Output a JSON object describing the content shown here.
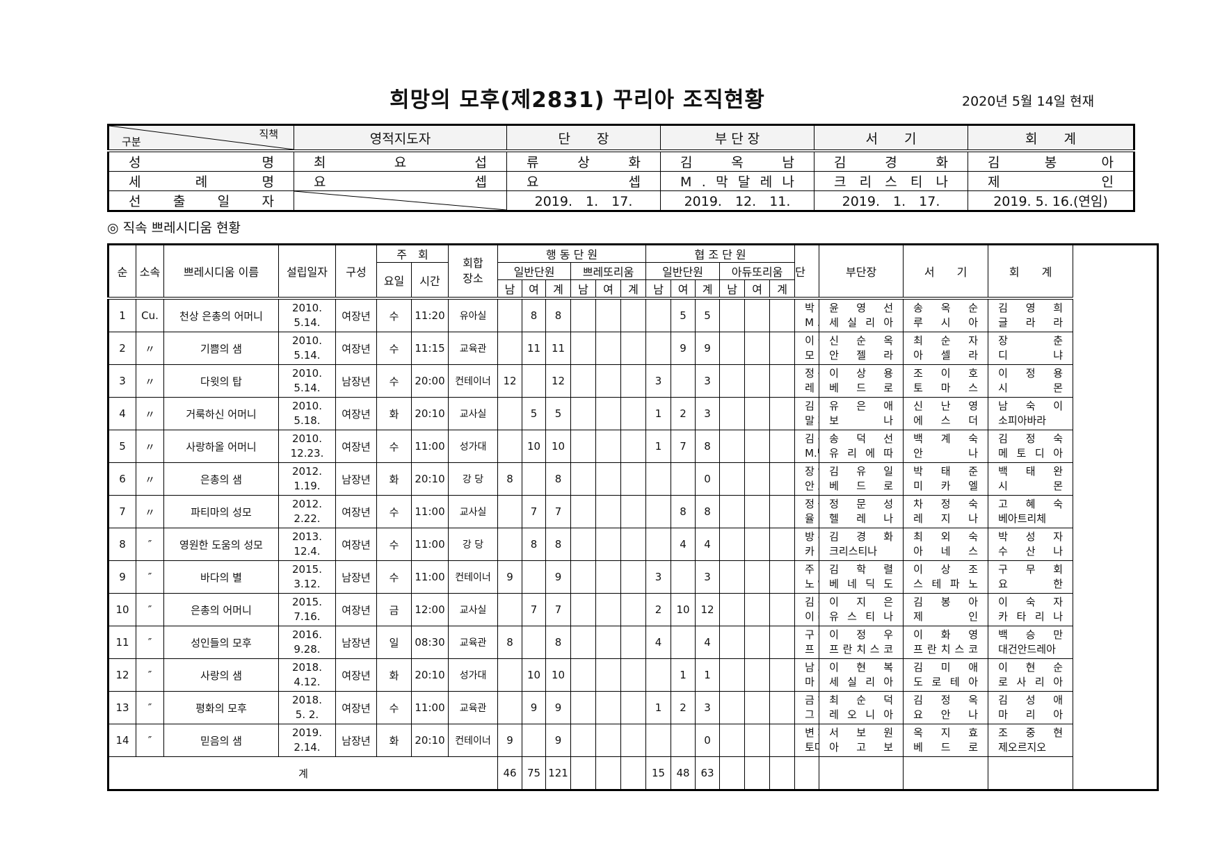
{
  "title": "희망의 모후(제2831) 꾸리아 조직현황",
  "as_of": "2020년 5월 14일 현재",
  "officers_table": {
    "corner_top": "직책",
    "corner_bottom": "구분",
    "headers": [
      "영적지도자",
      "단　　장",
      "부 단 장",
      "서　　기",
      "회　　계"
    ],
    "row_labels": [
      "성 명",
      "세 례 명",
      "선 출 일 자"
    ],
    "names": [
      "최 요 섭",
      "류 상 화",
      "김 옥 남",
      "김 경 화",
      "김 봉 아"
    ],
    "baptismal": [
      "요 셉",
      "요 셉",
      "M . 막 달 레 나",
      "크 리 스 티 나",
      "제 인"
    ],
    "elected": [
      "",
      "2019.　1.　17.",
      "2019.　12.　11.",
      "2019.　1.　17.",
      "2019. 5. 16.(연임)"
    ]
  },
  "section_title": "◎ 직속 쁘레시디움 현황",
  "main_table": {
    "headers": {
      "no": "순",
      "affil": "소속",
      "name": "쁘레시디움 이름",
      "founded": "설립일자",
      "composition": "구성",
      "meeting": "주　회",
      "day": "요일",
      "time": "시간",
      "place": "회합\n장소",
      "active": "행 동 단 원",
      "auxiliary": "협 조 단 원",
      "general": "일반단원",
      "praetorian": "쁘레또리움",
      "adjutorian": "아듀또리움",
      "male": "남",
      "female": "여",
      "sum": "계",
      "president": "단　　장",
      "vice": "부단장",
      "secretary": "서　　기",
      "treasurer": "회　　계"
    },
    "rows": [
      {
        "no": "1",
        "affil": "Cu.",
        "name": "천상 은총의 어머니",
        "founded": [
          "2010.",
          "5.14."
        ],
        "comp": "여장년",
        "day": "수",
        "time": "11:20",
        "place": "유아실",
        "active": [
          "",
          "8",
          "8"
        ],
        "pret": [
          "",
          "",
          ""
        ],
        "aux": [
          "",
          "5",
          "5"
        ],
        "adj": [
          "",
          "",
          ""
        ],
        "off": [
          [
            "박 말 임",
            "M . 살 로 메"
          ],
          [
            "윤 영 선",
            "세 실 리 아"
          ],
          [
            "송 옥 순",
            "루 시 아"
          ],
          [
            "김 영 희",
            "글 라 라"
          ]
        ]
      },
      {
        "no": "2",
        "affil": "〃",
        "name": "기쁨의 샘",
        "founded": [
          "2010.",
          "5.14."
        ],
        "comp": "여장년",
        "day": "수",
        "time": "11:15",
        "place": "교육관",
        "active": [
          "",
          "11",
          "11"
        ],
        "pret": [
          "",
          "",
          ""
        ],
        "aux": [
          "",
          "9",
          "9"
        ],
        "adj": [
          "",
          "",
          ""
        ],
        "off": [
          [
            "이 필 금",
            "모 니 카"
          ],
          [
            "신 순 옥",
            "안 젤 라"
          ],
          [
            "최 순 자",
            "아 셀 라"
          ],
          [
            "장 춘",
            "디 냐"
          ]
        ]
      },
      {
        "no": "3",
        "affil": "〃",
        "name": "다윗의 탑",
        "founded": [
          "2010.",
          "5.14."
        ],
        "comp": "남장년",
        "day": "수",
        "time": "20:00",
        "place": "컨테이너",
        "active": [
          "12",
          "",
          "12"
        ],
        "pret": [
          "",
          "",
          ""
        ],
        "aux": [
          "3",
          "",
          "3"
        ],
        "adj": [
          "",
          "",
          ""
        ],
        "off": [
          [
            "정 종 구",
            "레 미 지 오"
          ],
          [
            "이 상 용",
            "베 드 로"
          ],
          [
            "조 이 호",
            "토 마 스"
          ],
          [
            "이 정 용",
            "시 몬"
          ]
        ]
      },
      {
        "no": "4",
        "affil": "〃",
        "name": "거룩하신 어머니",
        "founded": [
          "2010.",
          "5.18."
        ],
        "comp": "여장년",
        "day": "화",
        "time": "20:10",
        "place": "교사실",
        "active": [
          "",
          "5",
          "5"
        ],
        "pret": [
          "",
          "",
          ""
        ],
        "aux": [
          "1",
          "2",
          "3"
        ],
        "adj": [
          "",
          "",
          ""
        ],
        "off": [
          [
            "김 말 필",
            "말 지 나"
          ],
          [
            "유 은 애",
            "보 나"
          ],
          [
            "신 난 영",
            "에 스 더"
          ],
          [
            "남 숙 이",
            "소피아바라"
          ]
        ]
      },
      {
        "no": "5",
        "affil": "〃",
        "name": "사랑하올 어머니",
        "founded": [
          "2010.",
          "12.23."
        ],
        "comp": "여장년",
        "day": "수",
        "time": "11:00",
        "place": "성가대",
        "active": [
          "",
          "10",
          "10"
        ],
        "pret": [
          "",
          "",
          ""
        ],
        "aux": [
          "1",
          "7",
          "8"
        ],
        "adj": [
          "",
          "",
          ""
        ],
        "off": [
          [
            "김 옥 남",
            "M.막달레나"
          ],
          [
            "송 덕 선",
            "유 리 에 따"
          ],
          [
            "백 계 숙",
            "안 나"
          ],
          [
            "김 정 숙",
            "메 토 디 아"
          ]
        ]
      },
      {
        "no": "6",
        "affil": "〃",
        "name": "은총의 샘",
        "founded": [
          "2012.",
          "1.19."
        ],
        "comp": "남장년",
        "day": "화",
        "time": "20:10",
        "place": "강 당",
        "active": [
          "8",
          "",
          "8"
        ],
        "pret": [
          "",
          "",
          ""
        ],
        "aux": [
          "",
          "",
          "0"
        ],
        "adj": [
          "",
          "",
          ""
        ],
        "off": [
          [
            "장 영 진",
            "안 토 니 오"
          ],
          [
            "김 유 일",
            "베 드 로"
          ],
          [
            "박 태 준",
            "미 카 엘"
          ],
          [
            "백 태 완",
            "시 몬"
          ]
        ]
      },
      {
        "no": "7",
        "affil": "〃",
        "name": "파티마의 성모",
        "founded": [
          "2012.",
          "2.22."
        ],
        "comp": "여장년",
        "day": "수",
        "time": "11:00",
        "place": "교사실",
        "active": [
          "",
          "7",
          "7"
        ],
        "pret": [
          "",
          "",
          ""
        ],
        "aux": [
          "",
          "8",
          "8"
        ],
        "adj": [
          "",
          "",
          ""
        ],
        "off": [
          [
            "정 숙 자",
            "율 리 안 나"
          ],
          [
            "정 문 성",
            "헬 레 나"
          ],
          [
            "차 정 숙",
            "레 지 나"
          ],
          [
            "고 혜 숙",
            "베아트리체"
          ]
        ]
      },
      {
        "no": "8",
        "affil": "″",
        "name": "영원한 도움의 성모",
        "founded": [
          "2013.",
          "12.4."
        ],
        "comp": "여장년",
        "day": "수",
        "time": "11:00",
        "place": "강 당",
        "active": [
          "",
          "8",
          "8"
        ],
        "pret": [
          "",
          "",
          ""
        ],
        "aux": [
          "",
          "4",
          "4"
        ],
        "adj": [
          "",
          "",
          ""
        ],
        "off": [
          [
            "방 수 자",
            "카 타 리 나"
          ],
          [
            "김 경 화",
            "크리스티나"
          ],
          [
            "최 외 숙",
            "아 네 스"
          ],
          [
            "박 성 자",
            "수 산 나"
          ]
        ]
      },
      {
        "no": "9",
        "affil": "″",
        "name": "바다의  별",
        "founded": [
          "2015.",
          "3.12."
        ],
        "comp": "남장년",
        "day": "수",
        "time": "11:00",
        "place": "컨테이너",
        "active": [
          "9",
          "",
          "9"
        ],
        "pret": [
          "",
          "",
          ""
        ],
        "aux": [
          "3",
          "",
          "3"
        ],
        "adj": [
          "",
          "",
          ""
        ],
        "off": [
          [
            "주 병 목",
            "노 엘"
          ],
          [
            "김 학 렬",
            "베 네 딕 도"
          ],
          [
            "이 상 조",
            "스 테 파 노"
          ],
          [
            "구 무 회",
            "요 한"
          ]
        ]
      },
      {
        "no": "10",
        "affil": "″",
        "name": "은총의 어머니",
        "founded": [
          "2015.",
          "7.16."
        ],
        "comp": "여장년",
        "day": "금",
        "time": "12:00",
        "place": "교사실",
        "active": [
          "",
          "7",
          "7"
        ],
        "pret": [
          "",
          "",
          ""
        ],
        "aux": [
          "2",
          "10",
          "12"
        ],
        "adj": [
          "",
          "",
          ""
        ],
        "off": [
          [
            "김 정 영",
            "이 레 네"
          ],
          [
            "이 지 은",
            "유 스 티 나"
          ],
          [
            "김 봉 아",
            "제 인"
          ],
          [
            "이 숙 자",
            "카 타 리 나"
          ]
        ]
      },
      {
        "no": "11",
        "affil": "″",
        "name": "성인들의 모후",
        "founded": [
          "2016.",
          "9.28."
        ],
        "comp": "남장년",
        "day": "일",
        "time": "08:30",
        "place": "교육관",
        "active": [
          "8",
          "",
          "8"
        ],
        "pret": [
          "",
          "",
          ""
        ],
        "aux": [
          "4",
          "",
          "4"
        ],
        "adj": [
          "",
          "",
          ""
        ],
        "off": [
          [
            "구 길 천",
            "프 란 치 스 코"
          ],
          [
            "이 정 우",
            "프 란 치 스 코"
          ],
          [
            "이 화 영",
            "프 란 치 스 코"
          ],
          [
            "백 승 만",
            "대건안드레아"
          ]
        ]
      },
      {
        "no": "12",
        "affil": "″",
        "name": "사랑의 샘",
        "founded": [
          "2018.",
          "4.12."
        ],
        "comp": "여장년",
        "day": "화",
        "time": "20:10",
        "place": "성가대",
        "active": [
          "",
          "10",
          "10"
        ],
        "pret": [
          "",
          "",
          ""
        ],
        "aux": [
          "",
          "1",
          "1"
        ],
        "adj": [
          "",
          "",
          ""
        ],
        "off": [
          [
            "남 소 향",
            "마 틸 다"
          ],
          [
            "이 현 복",
            "세 실 리 아"
          ],
          [
            "김 미 애",
            "도 로 테 아"
          ],
          [
            "이 현 순",
            "로 사 리 아"
          ]
        ]
      },
      {
        "no": "13",
        "affil": "″",
        "name": "평화의 모후",
        "founded": [
          "2018.",
          "5. 2."
        ],
        "comp": "여장년",
        "day": "수",
        "time": "11:00",
        "place": "교육관",
        "active": [
          "",
          "9",
          "9"
        ],
        "pret": [
          "",
          "",
          ""
        ],
        "aux": [
          "1",
          "2",
          "3"
        ],
        "adj": [
          "",
          "",
          ""
        ],
        "off": [
          [
            "금 혜 순",
            "그 라 시 아"
          ],
          [
            "최 순 덕",
            "레 오 니 아"
          ],
          [
            "김 정 옥",
            "요 안 나"
          ],
          [
            "김 성 애",
            "마 리 아"
          ]
        ]
      },
      {
        "no": "14",
        "affil": "″",
        "name": "믿음의 샘",
        "founded": [
          "2019.",
          "2.14."
        ],
        "comp": "남장년",
        "day": "화",
        "time": "20:10",
        "place": "컨테이너",
        "active": [
          "9",
          "",
          "9"
        ],
        "pret": [
          "",
          "",
          ""
        ],
        "aux": [
          "",
          "",
          "0"
        ],
        "adj": [
          "",
          "",
          ""
        ],
        "off": [
          [
            "변 재 을",
            "토마스모어"
          ],
          [
            "서 보 원",
            "아 고 보"
          ],
          [
            "옥 지 효",
            "베 드 로"
          ],
          [
            "조 중 현",
            "제오르지오"
          ]
        ]
      }
    ],
    "total": {
      "label": "계",
      "active": [
        "46",
        "75",
        "121"
      ],
      "pret": [
        "",
        "",
        ""
      ],
      "aux": [
        "15",
        "48",
        "63"
      ],
      "adj": [
        "",
        "",
        ""
      ]
    }
  }
}
